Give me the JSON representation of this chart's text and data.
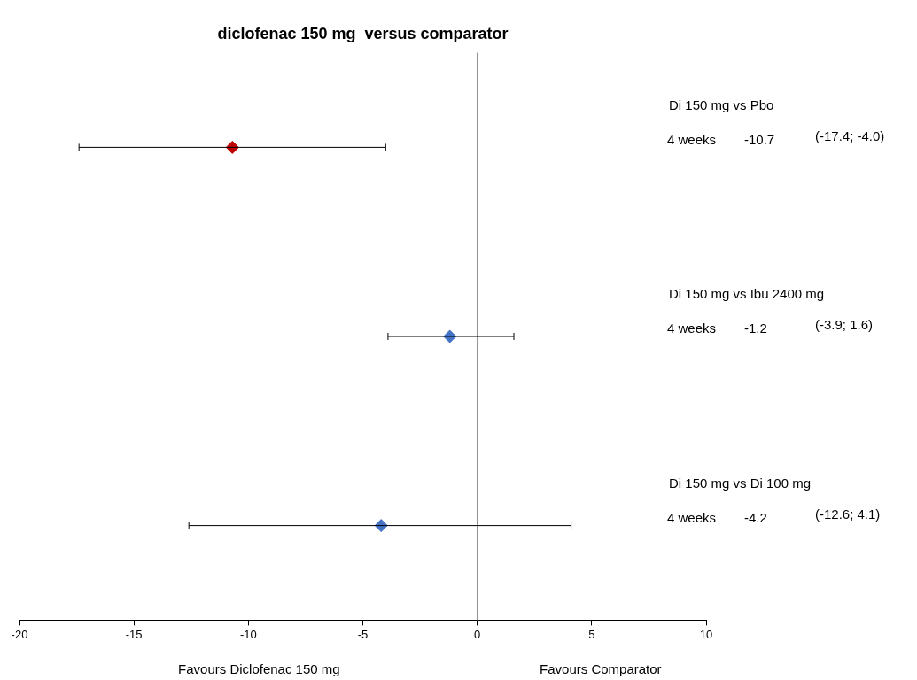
{
  "chart_data": {
    "type": "scatter",
    "title": "diclofenac 150 mg  versus comparator",
    "orientation": "horizontal",
    "categories": [
      null,
      null,
      null
    ],
    "values": [
      -10.7,
      -1.2,
      -4.2
    ],
    "errors": [
      [
        -17.4,
        -4.0
      ],
      [
        -3.9,
        1.6
      ],
      [
        -12.6,
        4.1
      ]
    ],
    "colors": [
      "#c00000",
      "#4472c4",
      "#4472c4"
    ],
    "marker": "diamond",
    "grid": false,
    "legend": false,
    "xlim": [
      -20,
      10
    ],
    "xticks": [
      -20,
      -15,
      -10,
      -5,
      0,
      5,
      10
    ],
    "ref_lines": [
      {
        "axis": "x",
        "value": 0,
        "color": "#808080"
      }
    ],
    "annotations": [
      "Di 150 mg vs Pbo",
      "4 weeks",
      "-10.7",
      "(-17.4; -4.0)",
      "Di 150 mg vs Ibu 2400 mg",
      "4 weeks",
      "-1.2",
      "(-3.9; 1.6)",
      "Di 150 mg vs Di 100 mg",
      "4 weeks",
      "-4.2",
      "(-12.6; 4.1)",
      "Favours Diclofenac 150 mg",
      "Favours Comparator"
    ]
  }
}
